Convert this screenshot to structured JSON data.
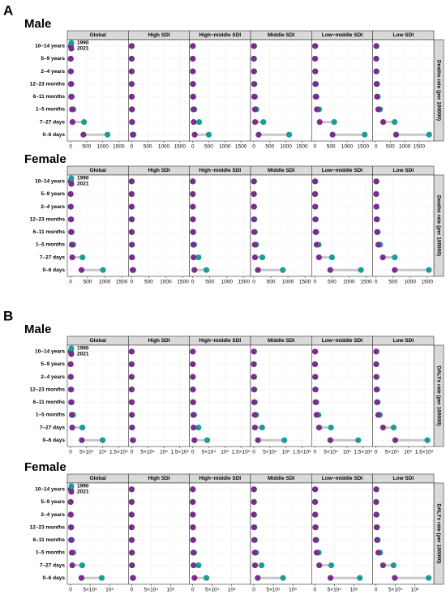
{
  "chart_data": [
    {
      "type": "dumbbell",
      "panel": "A",
      "title": "Male",
      "ylabel": "Deaths rate (per 100000)",
      "categories": [
        "10–14 years",
        "5–9 years",
        "2–4 years",
        "12–23 months",
        "6–11 months",
        "1–5 months",
        "7–27 days",
        "0–6 days"
      ],
      "series": [
        {
          "name": "1990",
          "color": "#1a9e8f"
        },
        {
          "name": "2021",
          "color": "#7b2d8e"
        }
      ],
      "facets": [
        {
          "title": "Global",
          "xlim": [
            0,
            1700
          ],
          "xticks": [
            0,
            500,
            1000,
            1500
          ],
          "values": [
            [
              10,
              6,
              12,
              25,
              40,
              90,
              420,
              1150
            ],
            [
              5,
              3,
              6,
              12,
              20,
              45,
              60,
              400
            ]
          ]
        },
        {
          "title": "High SDI",
          "xlim": [
            0,
            1700
          ],
          "xticks": [
            0,
            500,
            1000,
            1500
          ],
          "values": [
            [
              2,
              1,
              2,
              3,
              5,
              15,
              20,
              60
            ],
            [
              1,
              1,
              1,
              2,
              3,
              8,
              10,
              35
            ]
          ]
        },
        {
          "title": "High−middle SDI",
          "xlim": [
            0,
            1700
          ],
          "xticks": [
            0,
            500,
            1000,
            1500
          ],
          "values": [
            [
              5,
              3,
              6,
              12,
              20,
              50,
              200,
              500
            ],
            [
              2,
              1,
              2,
              5,
              8,
              20,
              30,
              60
            ]
          ]
        },
        {
          "title": "Middle SDI",
          "xlim": [
            0,
            1700
          ],
          "xticks": [
            0,
            500,
            1000,
            1500
          ],
          "values": [
            [
              8,
              5,
              10,
              20,
              35,
              80,
              300,
              1100
            ],
            [
              3,
              2,
              4,
              8,
              14,
              35,
              40,
              150
            ]
          ]
        },
        {
          "title": "Low−middle SDI",
          "xlim": [
            0,
            1700
          ],
          "xticks": [
            0,
            500,
            1000,
            1500
          ],
          "values": [
            [
              12,
              8,
              15,
              30,
              50,
              130,
              600,
              1550
            ],
            [
              6,
              4,
              8,
              15,
              25,
              60,
              150,
              550
            ]
          ]
        },
        {
          "title": "Low SDI",
          "xlim": [
            0,
            1900
          ],
          "xticks": [
            0,
            500,
            1000,
            1500
          ],
          "values": [
            [
              15,
              10,
              20,
              40,
              60,
              140,
              650,
              1850
            ],
            [
              8,
              5,
              10,
              20,
              35,
              80,
              250,
              700
            ]
          ]
        }
      ]
    },
    {
      "type": "dumbbell",
      "title": "Female",
      "ylabel": "Deaths rate (per 100000)",
      "categories": [
        "10–14 years",
        "5–9 years",
        "2–4 years",
        "12–23 months",
        "6–11 months",
        "1–5 months",
        "7–27 days",
        "0–6 days"
      ],
      "series": [
        {
          "name": "1990",
          "color": "#1a9e8f"
        },
        {
          "name": "2021",
          "color": "#7b2d8e"
        }
      ],
      "facets": [
        {
          "title": "Global",
          "xlim": [
            0,
            1600
          ],
          "xticks": [
            0,
            500,
            1000,
            1500
          ],
          "values": [
            [
              8,
              5,
              10,
              20,
              35,
              80,
              350,
              950
            ],
            [
              4,
              2,
              5,
              10,
              16,
              38,
              50,
              320
            ]
          ]
        },
        {
          "title": "High SDI",
          "xlim": [
            0,
            1600
          ],
          "xticks": [
            0,
            500,
            1000,
            1500
          ],
          "values": [
            [
              2,
              1,
              2,
              3,
              4,
              12,
              16,
              50
            ],
            [
              1,
              1,
              1,
              2,
              3,
              7,
              8,
              30
            ]
          ]
        },
        {
          "title": "High−middle SDI",
          "xlim": [
            0,
            1600
          ],
          "xticks": [
            0,
            500,
            1000,
            1500
          ],
          "values": [
            [
              4,
              2,
              5,
              10,
              17,
              42,
              170,
              400
            ],
            [
              2,
              1,
              2,
              4,
              7,
              17,
              25,
              50
            ]
          ]
        },
        {
          "title": "Middle SDI",
          "xlim": [
            0,
            1600
          ],
          "xticks": [
            0,
            500,
            1000,
            1500
          ],
          "values": [
            [
              7,
              4,
              8,
              17,
              30,
              68,
              250,
              850
            ],
            [
              3,
              2,
              3,
              7,
              12,
              30,
              35,
              120
            ]
          ]
        },
        {
          "title": "Low−middle SDI",
          "xlim": [
            0,
            1600
          ],
          "xticks": [
            0,
            500,
            1000,
            1500
          ],
          "values": [
            [
              10,
              7,
              13,
              25,
              42,
              110,
              500,
              1350
            ],
            [
              5,
              3,
              7,
              13,
              21,
              50,
              120,
              450
            ]
          ]
        },
        {
          "title": "Low SDI",
          "xlim": [
            0,
            1600
          ],
          "xticks": [
            0,
            500,
            1000,
            1500
          ],
          "values": [
            [
              12,
              8,
              17,
              33,
              50,
              120,
              550,
              1550
            ],
            [
              7,
              4,
              8,
              17,
              30,
              68,
              200,
              550
            ]
          ]
        }
      ]
    },
    {
      "type": "dumbbell",
      "panel": "B",
      "title": "Male",
      "ylabel": "DALYs rate (per 100000)",
      "categories": [
        "10–14 years",
        "5–9 years",
        "2–4 years",
        "12–23 months",
        "6–11 months",
        "1–5 months",
        "7–27 days",
        "0–6 days"
      ],
      "series": [
        {
          "name": "1990",
          "color": "#1a9e8f"
        },
        {
          "name": "2021",
          "color": "#7b2d8e"
        }
      ],
      "facets": [
        {
          "title": "Global",
          "xlim": [
            0,
            170000
          ],
          "xticks": [
            0,
            {
              "value": 50000,
              "label": "5×10⁴"
            },
            {
              "value": 100000,
              "label": "10⁵"
            },
            {
              "value": 150000,
              "label": "1.5×10⁵"
            }
          ],
          "values": [
            [
              900,
              500,
              1000,
              2200,
              3500,
              8000,
              37000,
              100000
            ],
            [
              450,
              260,
              500,
              1000,
              1800,
              4000,
              5200,
              35000
            ]
          ]
        },
        {
          "title": "High SDI",
          "xlim": [
            0,
            170000
          ],
          "xticks": [
            0,
            {
              "value": 50000,
              "label": "5×10⁴"
            },
            {
              "value": 100000,
              "label": "10⁵"
            },
            {
              "value": 150000,
              "label": "1.5×10⁵"
            }
          ],
          "values": [
            [
              180,
              90,
              180,
              260,
              440,
              1300,
              1800,
              5000
            ],
            [
              90,
              90,
              90,
              180,
              260,
              700,
              900,
              3500
            ]
          ]
        },
        {
          "title": "High−middle SDI",
          "xlim": [
            0,
            170000
          ],
          "xticks": [
            0,
            {
              "value": 50000,
              "label": "5×10⁴"
            },
            {
              "value": 100000,
              "label": "10⁵"
            },
            {
              "value": 150000,
              "label": "1.5×10⁵"
            }
          ],
          "values": [
            [
              440,
              260,
              520,
              1000,
              1800,
              4400,
              18000,
              45000
            ],
            [
              180,
              90,
              180,
              440,
              700,
              1800,
              2600,
              5200
            ]
          ]
        },
        {
          "title": "Middle SDI",
          "xlim": [
            0,
            170000
          ],
          "xticks": [
            0,
            {
              "value": 50000,
              "label": "5×10⁴"
            },
            {
              "value": 100000,
              "label": "10⁵"
            },
            {
              "value": 150000,
              "label": "1.5×10⁵"
            }
          ],
          "values": [
            [
              700,
              440,
              880,
              1800,
              3100,
              7000,
              26000,
              95000
            ],
            [
              260,
              180,
              350,
              700,
              1200,
              3100,
              3500,
              13000
            ]
          ]
        },
        {
          "title": "Low−middle SDI",
          "xlim": [
            0,
            170000
          ],
          "xticks": [
            0,
            {
              "value": 50000,
              "label": "5×10⁴"
            },
            {
              "value": 100000,
              "label": "10⁵"
            },
            {
              "value": 150000,
              "label": "1.5×10⁵"
            }
          ],
          "values": [
            [
              1000,
              700,
              1300,
              2600,
              4400,
              11000,
              50000,
              135000
            ],
            [
              520,
              350,
              700,
              1300,
              2200,
              5200,
              13000,
              48000
            ]
          ]
        },
        {
          "title": "Low SDI",
          "xlim": [
            0,
            170000
          ],
          "xticks": [
            0,
            {
              "value": 50000,
              "label": "5×10⁴"
            },
            {
              "value": 100000,
              "label": "10⁵"
            },
            {
              "value": 150000,
              "label": "1.5×10⁵"
            }
          ],
          "values": [
            [
              1300,
              880,
              1800,
              3500,
              5200,
              12000,
              55000,
              160000
            ],
            [
              700,
              440,
              880,
              1800,
              3100,
              7000,
              22000,
              60000
            ]
          ]
        }
      ]
    },
    {
      "type": "dumbbell",
      "title": "Female",
      "ylabel": "DALYs rate (per 100000)",
      "categories": [
        "10–14 years",
        "5–9 years",
        "2–4 years",
        "12–23 months",
        "6–11 months",
        "1–5 months",
        "7–27 days",
        "0–6 days"
      ],
      "series": [
        {
          "name": "1990",
          "color": "#1a9e8f"
        },
        {
          "name": "2021",
          "color": "#7b2d8e"
        }
      ],
      "facets": [
        {
          "title": "Global",
          "xlim": [
            0,
            140000
          ],
          "xticks": [
            0,
            {
              "value": 50000,
              "label": "5×10⁴"
            },
            {
              "value": 100000,
              "label": "10⁵"
            }
          ],
          "values": [
            [
              700,
              440,
              880,
              1800,
              3100,
              7000,
              30000,
              80000
            ],
            [
              350,
              180,
              440,
              880,
              1400,
              3300,
              4400,
              28000
            ]
          ]
        },
        {
          "title": "High SDI",
          "xlim": [
            0,
            140000
          ],
          "xticks": [
            0,
            {
              "value": 50000,
              "label": "5×10⁴"
            },
            {
              "value": 100000,
              "label": "10⁵"
            }
          ],
          "values": [
            [
              180,
              90,
              180,
              260,
              350,
              1000,
              1400,
              4000
            ],
            [
              90,
              90,
              90,
              180,
              260,
              600,
              700,
              3000
            ]
          ]
        },
        {
          "title": "High−middle SDI",
          "xlim": [
            0,
            140000
          ],
          "xticks": [
            0,
            {
              "value": 50000,
              "label": "5×10⁴"
            },
            {
              "value": 100000,
              "label": "10⁵"
            }
          ],
          "values": [
            [
              350,
              180,
              440,
              880,
              1500,
              3700,
              15000,
              35000
            ],
            [
              180,
              90,
              180,
              350,
              600,
              1500,
              2200,
              4500
            ]
          ]
        },
        {
          "title": "Middle SDI",
          "xlim": [
            0,
            140000
          ],
          "xticks": [
            0,
            {
              "value": 50000,
              "label": "5×10⁴"
            },
            {
              "value": 100000,
              "label": "10⁵"
            }
          ],
          "values": [
            [
              600,
              350,
              700,
              1500,
              2600,
              6000,
              20000,
              75000
            ],
            [
              260,
              180,
              260,
              600,
              1000,
              2600,
              3000,
              10000
            ]
          ]
        },
        {
          "title": "Low−middle SDI",
          "xlim": [
            0,
            140000
          ],
          "xticks": [
            0,
            {
              "value": 50000,
              "label": "5×10⁴"
            },
            {
              "value": 100000,
              "label": "10⁵"
            }
          ],
          "values": [
            [
              880,
              600,
              1100,
              2200,
              3700,
              9700,
              42000,
              115000
            ],
            [
              440,
              260,
              600,
              1100,
              1800,
              4400,
              11000,
              40000
            ]
          ]
        },
        {
          "title": "Low SDI",
          "xlim": [
            0,
            140000
          ],
          "xticks": [
            0,
            {
              "value": 50000,
              "label": "5×10⁴"
            },
            {
              "value": 100000,
              "label": "10⁵"
            }
          ],
          "values": [
            [
              1000,
              700,
              1500,
              2900,
              4400,
              10500,
              45000,
              135000
            ],
            [
              600,
              350,
              700,
              1500,
              2600,
              6000,
              18000,
              48000
            ]
          ]
        }
      ]
    }
  ]
}
